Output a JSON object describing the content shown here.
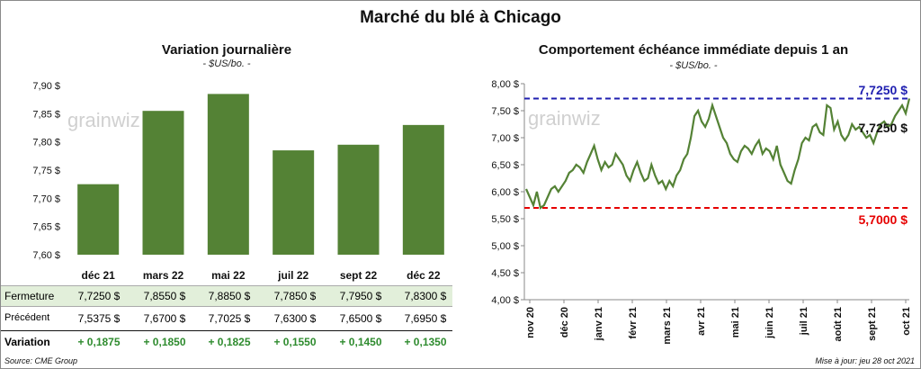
{
  "title": "Marché du blé à Chicago",
  "left": {
    "title": "Variation  journalière",
    "subtitle": "- $US/bo. -"
  },
  "right": {
    "title": "Comportement  échéance  immédiate  depuis 1 an",
    "subtitle": "- $US/bo. -",
    "label_high": "7,7250 $",
    "label_current": "7,7250 $",
    "label_low": "5,7000 $"
  },
  "watermark": "grainwiz",
  "table": {
    "rows": [
      {
        "label": "Fermeture",
        "values": [
          "7,7250  $",
          "7,8550  $",
          "7,8850  $",
          "7,7850  $",
          "7,7950  $",
          "7,8300  $"
        ]
      },
      {
        "label": "Précédent",
        "values": [
          "7,5375  $",
          "7,6700  $",
          "7,7025  $",
          "7,6300  $",
          "7,6500  $",
          "7,6950  $"
        ]
      },
      {
        "label": "Variation",
        "values": [
          "+ 0,1875",
          "+ 0,1850",
          "+ 0,1825",
          "+ 0,1550",
          "+ 0,1450",
          "+ 0,1350"
        ]
      }
    ]
  },
  "footer": {
    "source": "Source: CME Group",
    "updated": "Mise à jour: jeu 28 oct 2021"
  },
  "colors": {
    "bar": "#548235",
    "line": "#548235",
    "high_line": "#1f1fb0",
    "low_line": "#e60000",
    "variation_text": "#2e8b2e",
    "fermeture_bg": "#e2efda"
  },
  "chart_data": [
    {
      "type": "bar",
      "categories": [
        "déc 21",
        "mars 22",
        "mai 22",
        "juil 22",
        "sept 22",
        "déc 22"
      ],
      "values": [
        7.725,
        7.855,
        7.885,
        7.785,
        7.795,
        7.83
      ],
      "yticks": [
        "7,60 $",
        "7,65 $",
        "7,70 $",
        "7,75 $",
        "7,80 $",
        "7,85 $",
        "7,90 $"
      ],
      "ylim": [
        7.6,
        7.9
      ],
      "grid": false
    },
    {
      "type": "line",
      "xticks": [
        "nov 20",
        "déc 20",
        "janv 21",
        "févr 21",
        "mars 21",
        "avr 21",
        "mai 21",
        "juin 21",
        "juil 21",
        "août 21",
        "sept 21",
        "oct 21"
      ],
      "yticks": [
        "4,00 $",
        "4,50 $",
        "5,00 $",
        "5,50 $",
        "6,00 $",
        "6,50 $",
        "7,00 $",
        "7,50 $",
        "8,00 $"
      ],
      "ylim": [
        4.0,
        8.0
      ],
      "hlines": [
        7.725,
        5.7
      ],
      "series": [
        {
          "values": [
            6.05,
            5.9,
            5.75,
            6.0,
            5.7,
            5.75,
            5.9,
            6.05,
            6.1,
            6.0,
            6.1,
            6.2,
            6.35,
            6.4,
            6.5,
            6.45,
            6.35,
            6.55,
            6.7,
            6.85,
            6.6,
            6.4,
            6.55,
            6.45,
            6.5,
            6.7,
            6.6,
            6.5,
            6.3,
            6.2,
            6.4,
            6.55,
            6.35,
            6.2,
            6.25,
            6.5,
            6.3,
            6.15,
            6.2,
            6.05,
            6.2,
            6.1,
            6.3,
            6.4,
            6.6,
            6.7,
            7.0,
            7.4,
            7.5,
            7.3,
            7.2,
            7.35,
            7.6,
            7.4,
            7.2,
            7.0,
            6.9,
            6.7,
            6.6,
            6.55,
            6.75,
            6.85,
            6.8,
            6.7,
            6.85,
            6.95,
            6.7,
            6.8,
            6.75,
            6.6,
            6.85,
            6.5,
            6.35,
            6.2,
            6.15,
            6.4,
            6.6,
            6.9,
            7.0,
            6.95,
            7.2,
            7.25,
            7.1,
            7.05,
            7.6,
            7.55,
            7.15,
            7.3,
            7.05,
            6.95,
            7.05,
            7.25,
            7.15,
            7.2,
            7.1,
            7.0,
            7.05,
            6.9,
            7.1,
            7.25,
            7.3,
            7.2,
            7.25,
            7.4,
            7.5,
            7.6,
            7.45,
            7.725
          ]
        }
      ]
    }
  ]
}
